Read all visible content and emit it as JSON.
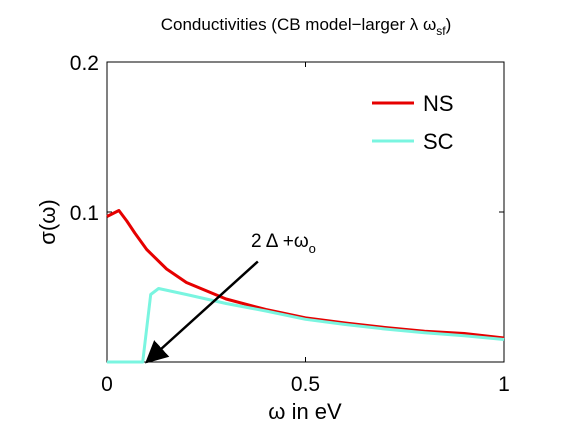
{
  "chart_data": {
    "type": "line",
    "title": {
      "main": "Conductivities (CB model−larger λ ω",
      "sub": "sf",
      "close": ")"
    },
    "xlabel": "ω in eV",
    "ylabel": "σ(ω)",
    "xlim": [
      0,
      1
    ],
    "ylim": [
      0,
      0.2
    ],
    "x_ticks": [
      {
        "value": 0,
        "label": "0"
      },
      {
        "value": 0.5,
        "label": "0.5"
      },
      {
        "value": 1,
        "label": "1"
      }
    ],
    "y_ticks": [
      {
        "value": 0.1,
        "label": "0.1"
      },
      {
        "value": 0.2,
        "label": "0.2"
      }
    ],
    "grid": false,
    "legend_position": "top-right",
    "series": [
      {
        "name": "NS",
        "color": "#e60000",
        "x": [
          0.0,
          0.03,
          0.05,
          0.07,
          0.1,
          0.15,
          0.2,
          0.3,
          0.4,
          0.5,
          0.6,
          0.7,
          0.8,
          0.9,
          1.0
        ],
        "y": [
          0.097,
          0.101,
          0.094,
          0.086,
          0.075,
          0.062,
          0.053,
          0.042,
          0.035,
          0.0295,
          0.026,
          0.023,
          0.0205,
          0.019,
          0.016
        ]
      },
      {
        "name": "SC",
        "color": "#7af5e0",
        "x": [
          0.0,
          0.08,
          0.09,
          0.11,
          0.13,
          0.2,
          0.3,
          0.4,
          0.5,
          0.6,
          0.7,
          0.8,
          0.9,
          1.0
        ],
        "y": [
          0.0,
          0.0,
          0.0,
          0.045,
          0.049,
          0.045,
          0.039,
          0.034,
          0.0285,
          0.025,
          0.022,
          0.0195,
          0.0175,
          0.015
        ]
      }
    ],
    "annotation": {
      "main": "2 Δ +ω",
      "sub": "o",
      "arrow_from": [
        0.38,
        0.067
      ],
      "arrow_to": [
        0.1,
        0.0
      ]
    }
  }
}
